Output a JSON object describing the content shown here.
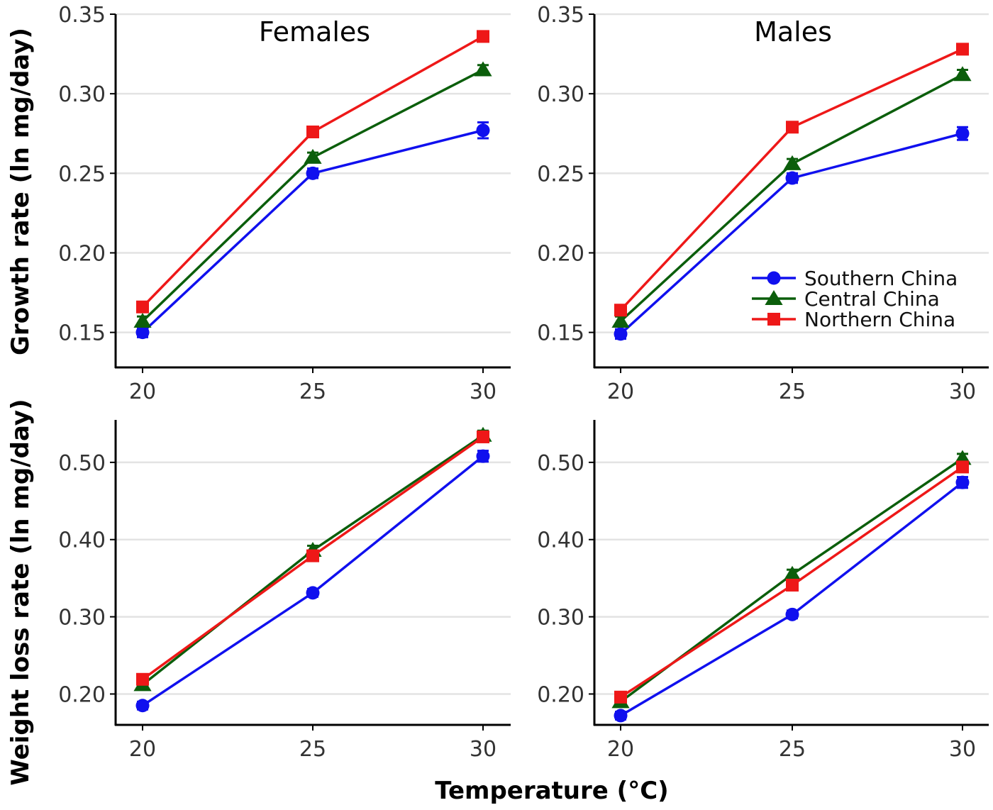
{
  "figure": {
    "xlabel": "Temperature (°C)",
    "row_ylabels": [
      "Growth rate (ln mg/day)",
      "Weight loss rate (ln mg/day)"
    ],
    "column_titles": [
      "Females",
      "Males"
    ]
  },
  "colors": {
    "Southern China": "#1010ee",
    "Central China": "#0b5e0b",
    "Northern China": "#ee1818",
    "gridline": "#e3e3e3",
    "axis": "#000000"
  },
  "legend": {
    "placement": "inside-right of top-right panel",
    "items": [
      {
        "label": "Southern China",
        "marker": "circle"
      },
      {
        "label": "Central China",
        "marker": "triangle"
      },
      {
        "label": "Northern China",
        "marker": "square"
      }
    ]
  },
  "chart_data": [
    {
      "type": "line",
      "panel": "growth-females",
      "title": "Females",
      "ylabel": "Growth rate (ln mg/day)",
      "xlabel": "",
      "x": [
        20,
        25,
        30
      ],
      "x_tick_labels": [
        "20",
        "25",
        "30"
      ],
      "ylim": [
        0.128,
        0.35
      ],
      "y_ticks": [
        0.15,
        0.2,
        0.25,
        0.3,
        0.35
      ],
      "y_tick_labels": [
        "0.15",
        "0.20",
        "0.25",
        "0.30",
        "0.35"
      ],
      "grid": "horizontal",
      "series": [
        {
          "name": "Southern China",
          "marker": "circle",
          "values": [
            0.15,
            0.25,
            0.277
          ],
          "errors": [
            0.003,
            0.003,
            0.005
          ]
        },
        {
          "name": "Central China",
          "marker": "triangle",
          "values": [
            0.157,
            0.26,
            0.315
          ],
          "errors": [
            0.003,
            0.003,
            0.003
          ]
        },
        {
          "name": "Northern China",
          "marker": "square",
          "values": [
            0.166,
            0.276,
            0.336
          ],
          "errors": [
            0.003,
            0.003,
            0.003
          ]
        }
      ]
    },
    {
      "type": "line",
      "panel": "growth-males",
      "title": "Males",
      "ylabel": "",
      "xlabel": "",
      "x": [
        20,
        25,
        30
      ],
      "x_tick_labels": [
        "20",
        "25",
        "30"
      ],
      "ylim": [
        0.128,
        0.35
      ],
      "y_ticks": [
        0.15,
        0.2,
        0.25,
        0.3,
        0.35
      ],
      "y_tick_labels": [
        "0.15",
        "0.20",
        "0.25",
        "0.30",
        "0.35"
      ],
      "grid": "horizontal",
      "series": [
        {
          "name": "Southern China",
          "marker": "circle",
          "values": [
            0.149,
            0.247,
            0.275
          ],
          "errors": [
            0.003,
            0.003,
            0.004
          ]
        },
        {
          "name": "Central China",
          "marker": "triangle",
          "values": [
            0.157,
            0.256,
            0.312
          ],
          "errors": [
            0.003,
            0.003,
            0.003
          ]
        },
        {
          "name": "Northern China",
          "marker": "square",
          "values": [
            0.164,
            0.279,
            0.328
          ],
          "errors": [
            0.003,
            0.003,
            0.003
          ]
        }
      ]
    },
    {
      "type": "line",
      "panel": "weightloss-females",
      "title": "",
      "ylabel": "Weight loss rate (ln mg/day)",
      "xlabel": "Temperature (°C)",
      "x": [
        20,
        25,
        30
      ],
      "x_tick_labels": [
        "20",
        "25",
        "30"
      ],
      "ylim": [
        0.16,
        0.555
      ],
      "y_ticks": [
        0.2,
        0.3,
        0.4,
        0.5
      ],
      "y_tick_labels": [
        "0.20",
        "0.30",
        "0.40",
        "0.50"
      ],
      "grid": "horizontal",
      "series": [
        {
          "name": "Southern China",
          "marker": "circle",
          "values": [
            0.185,
            0.331,
            0.508
          ],
          "errors": [
            0.005,
            0.005,
            0.007
          ]
        },
        {
          "name": "Central China",
          "marker": "triangle",
          "values": [
            0.212,
            0.386,
            0.535
          ],
          "errors": [
            0.006,
            0.006,
            0.006
          ]
        },
        {
          "name": "Northern China",
          "marker": "square",
          "values": [
            0.219,
            0.379,
            0.533
          ],
          "errors": [
            0.006,
            0.006,
            0.006
          ]
        }
      ]
    },
    {
      "type": "line",
      "panel": "weightloss-males",
      "title": "",
      "ylabel": "",
      "xlabel": "Temperature (°C)",
      "x": [
        20,
        25,
        30
      ],
      "x_tick_labels": [
        "20",
        "25",
        "30"
      ],
      "ylim": [
        0.16,
        0.555
      ],
      "y_ticks": [
        0.2,
        0.3,
        0.4,
        0.5
      ],
      "y_tick_labels": [
        "0.20",
        "0.30",
        "0.40",
        "0.50"
      ],
      "grid": "horizontal",
      "series": [
        {
          "name": "Southern China",
          "marker": "circle",
          "values": [
            0.172,
            0.303,
            0.474
          ],
          "errors": [
            0.005,
            0.005,
            0.007
          ]
        },
        {
          "name": "Central China",
          "marker": "triangle",
          "values": [
            0.19,
            0.355,
            0.505
          ],
          "errors": [
            0.006,
            0.006,
            0.006
          ]
        },
        {
          "name": "Northern China",
          "marker": "square",
          "values": [
            0.196,
            0.341,
            0.494
          ],
          "errors": [
            0.006,
            0.006,
            0.006
          ]
        }
      ]
    }
  ]
}
